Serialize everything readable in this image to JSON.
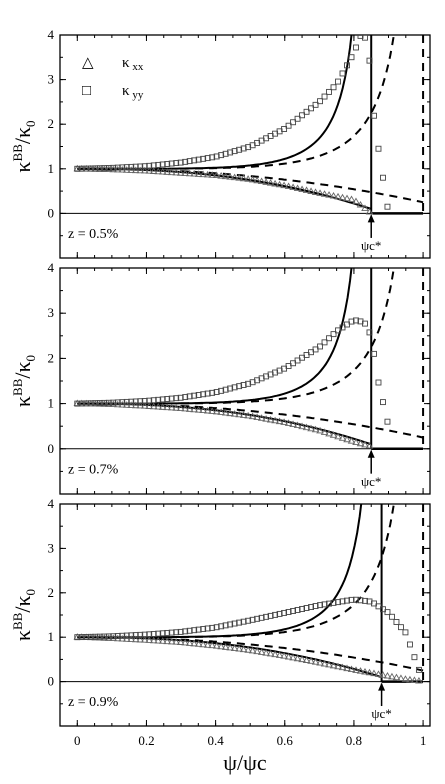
{
  "chart_data": [
    {
      "type": "line",
      "z_label": "z = 0.5%",
      "marker_label": "ψc*",
      "psi_star": 0.85,
      "xlim": [
        -0.05,
        1.02
      ],
      "ylim": [
        -1,
        4
      ],
      "yticks": [
        "0",
        "1",
        "2",
        "3",
        "4"
      ],
      "legend": [
        {
          "symbol": "△",
          "name": "κ",
          "sub": "xx"
        },
        {
          "symbol": "□",
          "name": "κ",
          "sub": "yy"
        }
      ],
      "series": [
        {
          "name": "κxx",
          "kind": "markers",
          "marker": "triangle",
          "x": [
            0,
            0.1,
            0.2,
            0.3,
            0.4,
            0.5,
            0.6,
            0.7,
            0.8,
            0.85
          ],
          "y": [
            1.0,
            0.98,
            0.95,
            0.9,
            0.85,
            0.76,
            0.62,
            0.45,
            0.3,
            0.0
          ]
        },
        {
          "name": "κyy",
          "kind": "markers",
          "marker": "square",
          "x": [
            0,
            0.1,
            0.2,
            0.3,
            0.4,
            0.5,
            0.6,
            0.7,
            0.75,
            0.8,
            0.82,
            0.84,
            0.86,
            0.88,
            0.9
          ],
          "y": [
            1.0,
            1.02,
            1.06,
            1.14,
            1.27,
            1.5,
            1.9,
            2.5,
            2.9,
            3.6,
            4.0,
            3.9,
            2.0,
            1.0,
            0.0
          ]
        }
      ]
    },
    {
      "type": "line",
      "z_label": "z = 0.7%",
      "marker_label": "ψc*",
      "psi_star": 0.85,
      "xlim": [
        -0.05,
        1.02
      ],
      "ylim": [
        -1,
        4
      ],
      "yticks": [
        "0",
        "1",
        "2",
        "3",
        "4"
      ],
      "series": [
        {
          "name": "κxx",
          "kind": "markers",
          "marker": "triangle",
          "x": [
            0,
            0.1,
            0.2,
            0.3,
            0.4,
            0.5,
            0.6,
            0.7,
            0.8,
            0.85
          ],
          "y": [
            1.0,
            0.98,
            0.94,
            0.89,
            0.82,
            0.72,
            0.58,
            0.4,
            0.15,
            0.05
          ]
        },
        {
          "name": "κyy",
          "kind": "markers",
          "marker": "square",
          "x": [
            0,
            0.1,
            0.2,
            0.3,
            0.4,
            0.5,
            0.6,
            0.7,
            0.75,
            0.8,
            0.83,
            0.85,
            0.87,
            0.9
          ],
          "y": [
            1.0,
            1.02,
            1.06,
            1.13,
            1.25,
            1.45,
            1.78,
            2.25,
            2.6,
            2.85,
            2.8,
            2.5,
            1.5,
            0.5
          ]
        }
      ]
    },
    {
      "type": "line",
      "z_label": "z = 0.9%",
      "marker_label": "ψc*",
      "psi_star": 0.88,
      "xlim": [
        -0.05,
        1.02
      ],
      "ylim": [
        -1,
        4
      ],
      "yticks": [
        "0",
        "1",
        "2",
        "3",
        "4"
      ],
      "xticks": [
        "0",
        "0.2",
        "0.4",
        "0.6",
        "0.8",
        "1"
      ],
      "xlabel": "ψ/ψc",
      "series": [
        {
          "name": "κxx",
          "kind": "markers",
          "marker": "triangle",
          "x": [
            0,
            0.1,
            0.2,
            0.3,
            0.4,
            0.5,
            0.6,
            0.7,
            0.8,
            0.9,
            0.95,
            1.0
          ],
          "y": [
            1.0,
            0.97,
            0.93,
            0.88,
            0.8,
            0.7,
            0.57,
            0.42,
            0.26,
            0.12,
            0.05,
            0.0
          ]
        },
        {
          "name": "κyy",
          "kind": "markers",
          "marker": "square",
          "x": [
            0,
            0.1,
            0.2,
            0.3,
            0.4,
            0.5,
            0.6,
            0.7,
            0.8,
            0.85,
            0.9,
            0.95,
            1.0
          ],
          "y": [
            1.0,
            1.02,
            1.06,
            1.12,
            1.22,
            1.38,
            1.55,
            1.72,
            1.85,
            1.8,
            1.55,
            1.1,
            0.0
          ]
        }
      ]
    }
  ],
  "shared_ylabel": {
    "main": "κ",
    "sup": "BB",
    "denom": "κ",
    "sub": "0"
  }
}
